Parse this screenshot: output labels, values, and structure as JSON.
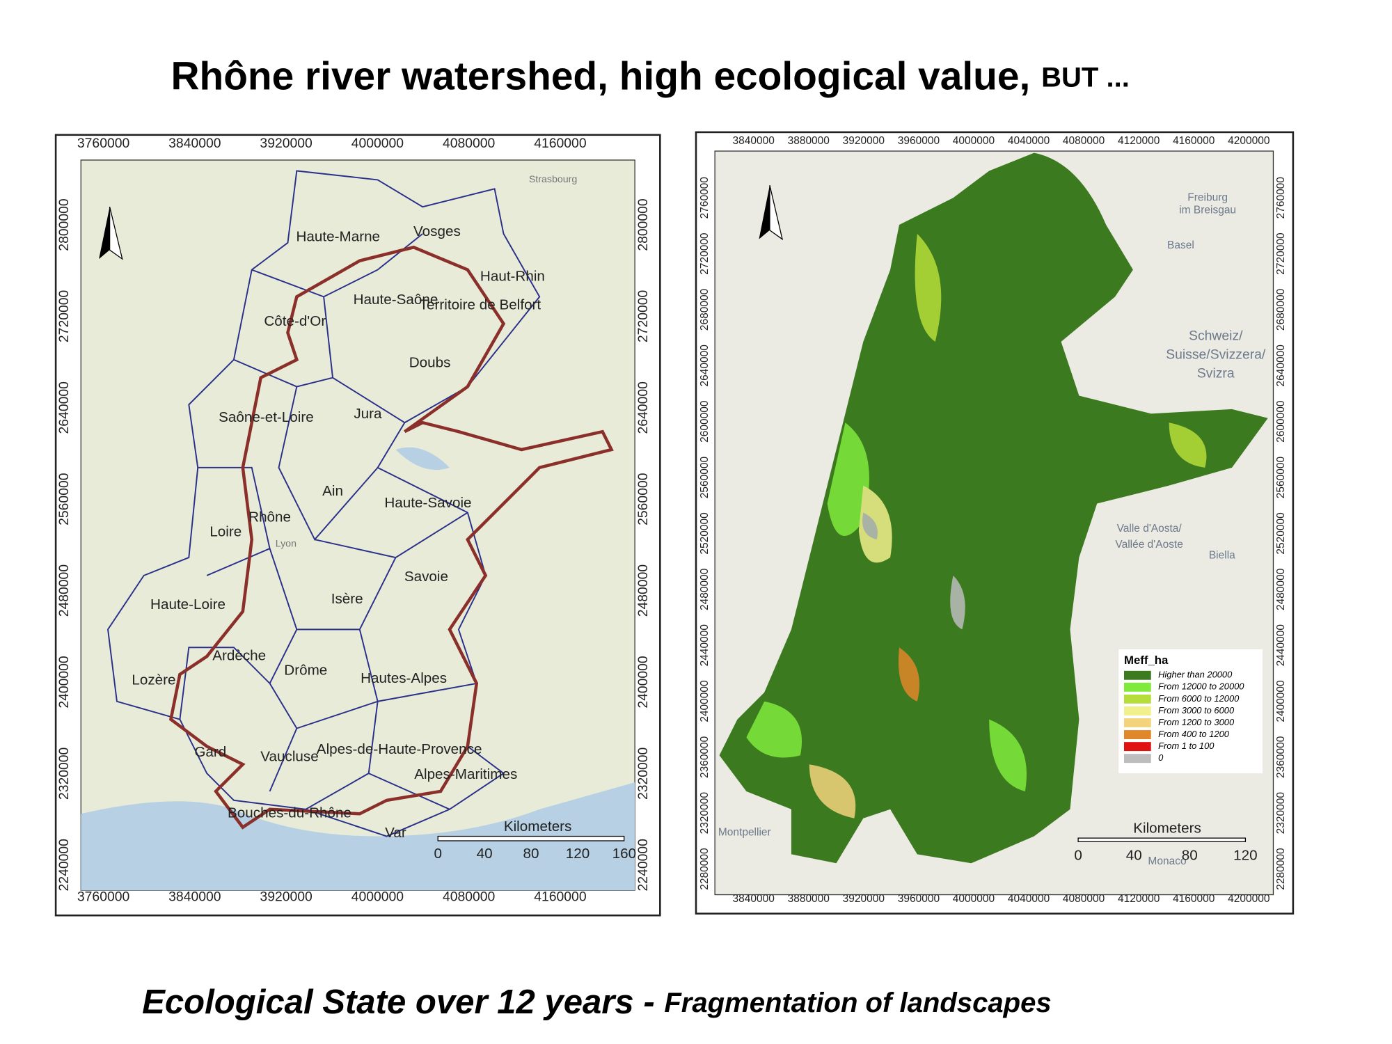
{
  "title": {
    "main": "Rhône river watershed, high ecological value,",
    "suffix": "BUT ..."
  },
  "caption": {
    "main": "Ecological State over 12 years -",
    "suffix": "Fragmentation of landscapes"
  },
  "left_map": {
    "x_ticks": [
      "3760000",
      "3840000",
      "3920000",
      "4000000",
      "4080000",
      "4160000"
    ],
    "y_ticks": [
      "2800000",
      "2720000",
      "2640000",
      "2560000",
      "2480000",
      "2400000",
      "2320000",
      "2240000"
    ],
    "regions": [
      "Haute-Marne",
      "Vosges",
      "Haut-Rhin",
      "Haute-Saône",
      "Territoire de Belfort",
      "Côte-d'Or",
      "Doubs",
      "Saône-et-Loire",
      "Jura",
      "Ain",
      "Haute-Savoie",
      "Rhône",
      "Loire",
      "Savoie",
      "Haute-Loire",
      "Isère",
      "Ardèche",
      "Drôme",
      "Lozère",
      "Hautes-Alpes",
      "Gard",
      "Vaucluse",
      "Alpes-de-Haute-Provence",
      "Alpes-Maritimes",
      "Bouches-du-Rhône",
      "Var"
    ],
    "places": [
      "Strasbourg",
      "Lyon"
    ],
    "scale_bar": {
      "title": "Kilometers",
      "ticks": [
        "0",
        "40",
        "80",
        "120",
        "160"
      ]
    }
  },
  "right_map": {
    "x_ticks": [
      "3840000",
      "3880000",
      "3920000",
      "3960000",
      "4000000",
      "4040000",
      "4080000",
      "4120000",
      "4160000",
      "4200000"
    ],
    "y_ticks": [
      "2760000",
      "2720000",
      "2680000",
      "2640000",
      "2600000",
      "2560000",
      "2520000",
      "2480000",
      "2440000",
      "2400000",
      "2360000",
      "2320000",
      "2280000"
    ],
    "places": [
      "Freiburg",
      "im Breisgau",
      "Basel",
      "Schweiz/",
      "Suisse/Svizzera/",
      "Svizra",
      "Valle d'Aosta/",
      "Vallée d'Aoste",
      "Biella",
      "Monaco",
      "Montpellier"
    ],
    "legend": {
      "title": "Meff_ha",
      "items": [
        {
          "label": "Higher than 20000",
          "color": "#3b7a1f"
        },
        {
          "label": "From 12000 to 20000",
          "color": "#80ea3c"
        },
        {
          "label": "From 6000 to 12000",
          "color": "#b6de3a"
        },
        {
          "label": "From 3000 to 6000",
          "color": "#f2f08c"
        },
        {
          "label": "From 1200 to 3000",
          "color": "#f3d47c"
        },
        {
          "label": "From 400 to 1200",
          "color": "#e0872a"
        },
        {
          "label": "From 1 to 100",
          "color": "#e01212"
        },
        {
          "label": "0",
          "color": "#bdbdbd"
        }
      ]
    },
    "scale_bar": {
      "title": "Kilometers",
      "ticks": [
        "0",
        "40",
        "80",
        "120"
      ]
    }
  }
}
